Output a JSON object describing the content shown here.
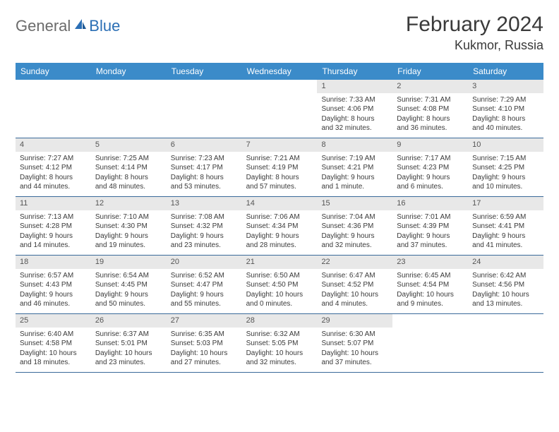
{
  "brand": {
    "general": "General",
    "blue": "Blue"
  },
  "title": "February 2024",
  "location": "Kukmor, Russia",
  "colors": {
    "header_bg": "#3b8bc9",
    "header_text": "#ffffff",
    "daynum_bg": "#e8e8e8",
    "rule": "#3a6a9a",
    "title_color": "#3a3a3a",
    "logo_general": "#6b6b6b",
    "logo_blue": "#2b6fb5"
  },
  "weekdays": [
    "Sunday",
    "Monday",
    "Tuesday",
    "Wednesday",
    "Thursday",
    "Friday",
    "Saturday"
  ],
  "weeks": [
    [
      {
        "empty": true
      },
      {
        "empty": true
      },
      {
        "empty": true
      },
      {
        "empty": true
      },
      {
        "n": "1",
        "sr": "Sunrise: 7:33 AM",
        "ss": "Sunset: 4:06 PM",
        "d1": "Daylight: 8 hours",
        "d2": "and 32 minutes."
      },
      {
        "n": "2",
        "sr": "Sunrise: 7:31 AM",
        "ss": "Sunset: 4:08 PM",
        "d1": "Daylight: 8 hours",
        "d2": "and 36 minutes."
      },
      {
        "n": "3",
        "sr": "Sunrise: 7:29 AM",
        "ss": "Sunset: 4:10 PM",
        "d1": "Daylight: 8 hours",
        "d2": "and 40 minutes."
      }
    ],
    [
      {
        "n": "4",
        "sr": "Sunrise: 7:27 AM",
        "ss": "Sunset: 4:12 PM",
        "d1": "Daylight: 8 hours",
        "d2": "and 44 minutes."
      },
      {
        "n": "5",
        "sr": "Sunrise: 7:25 AM",
        "ss": "Sunset: 4:14 PM",
        "d1": "Daylight: 8 hours",
        "d2": "and 48 minutes."
      },
      {
        "n": "6",
        "sr": "Sunrise: 7:23 AM",
        "ss": "Sunset: 4:17 PM",
        "d1": "Daylight: 8 hours",
        "d2": "and 53 minutes."
      },
      {
        "n": "7",
        "sr": "Sunrise: 7:21 AM",
        "ss": "Sunset: 4:19 PM",
        "d1": "Daylight: 8 hours",
        "d2": "and 57 minutes."
      },
      {
        "n": "8",
        "sr": "Sunrise: 7:19 AM",
        "ss": "Sunset: 4:21 PM",
        "d1": "Daylight: 9 hours",
        "d2": "and 1 minute."
      },
      {
        "n": "9",
        "sr": "Sunrise: 7:17 AM",
        "ss": "Sunset: 4:23 PM",
        "d1": "Daylight: 9 hours",
        "d2": "and 6 minutes."
      },
      {
        "n": "10",
        "sr": "Sunrise: 7:15 AM",
        "ss": "Sunset: 4:25 PM",
        "d1": "Daylight: 9 hours",
        "d2": "and 10 minutes."
      }
    ],
    [
      {
        "n": "11",
        "sr": "Sunrise: 7:13 AM",
        "ss": "Sunset: 4:28 PM",
        "d1": "Daylight: 9 hours",
        "d2": "and 14 minutes."
      },
      {
        "n": "12",
        "sr": "Sunrise: 7:10 AM",
        "ss": "Sunset: 4:30 PM",
        "d1": "Daylight: 9 hours",
        "d2": "and 19 minutes."
      },
      {
        "n": "13",
        "sr": "Sunrise: 7:08 AM",
        "ss": "Sunset: 4:32 PM",
        "d1": "Daylight: 9 hours",
        "d2": "and 23 minutes."
      },
      {
        "n": "14",
        "sr": "Sunrise: 7:06 AM",
        "ss": "Sunset: 4:34 PM",
        "d1": "Daylight: 9 hours",
        "d2": "and 28 minutes."
      },
      {
        "n": "15",
        "sr": "Sunrise: 7:04 AM",
        "ss": "Sunset: 4:36 PM",
        "d1": "Daylight: 9 hours",
        "d2": "and 32 minutes."
      },
      {
        "n": "16",
        "sr": "Sunrise: 7:01 AM",
        "ss": "Sunset: 4:39 PM",
        "d1": "Daylight: 9 hours",
        "d2": "and 37 minutes."
      },
      {
        "n": "17",
        "sr": "Sunrise: 6:59 AM",
        "ss": "Sunset: 4:41 PM",
        "d1": "Daylight: 9 hours",
        "d2": "and 41 minutes."
      }
    ],
    [
      {
        "n": "18",
        "sr": "Sunrise: 6:57 AM",
        "ss": "Sunset: 4:43 PM",
        "d1": "Daylight: 9 hours",
        "d2": "and 46 minutes."
      },
      {
        "n": "19",
        "sr": "Sunrise: 6:54 AM",
        "ss": "Sunset: 4:45 PM",
        "d1": "Daylight: 9 hours",
        "d2": "and 50 minutes."
      },
      {
        "n": "20",
        "sr": "Sunrise: 6:52 AM",
        "ss": "Sunset: 4:47 PM",
        "d1": "Daylight: 9 hours",
        "d2": "and 55 minutes."
      },
      {
        "n": "21",
        "sr": "Sunrise: 6:50 AM",
        "ss": "Sunset: 4:50 PM",
        "d1": "Daylight: 10 hours",
        "d2": "and 0 minutes."
      },
      {
        "n": "22",
        "sr": "Sunrise: 6:47 AM",
        "ss": "Sunset: 4:52 PM",
        "d1": "Daylight: 10 hours",
        "d2": "and 4 minutes."
      },
      {
        "n": "23",
        "sr": "Sunrise: 6:45 AM",
        "ss": "Sunset: 4:54 PM",
        "d1": "Daylight: 10 hours",
        "d2": "and 9 minutes."
      },
      {
        "n": "24",
        "sr": "Sunrise: 6:42 AM",
        "ss": "Sunset: 4:56 PM",
        "d1": "Daylight: 10 hours",
        "d2": "and 13 minutes."
      }
    ],
    [
      {
        "n": "25",
        "sr": "Sunrise: 6:40 AM",
        "ss": "Sunset: 4:58 PM",
        "d1": "Daylight: 10 hours",
        "d2": "and 18 minutes."
      },
      {
        "n": "26",
        "sr": "Sunrise: 6:37 AM",
        "ss": "Sunset: 5:01 PM",
        "d1": "Daylight: 10 hours",
        "d2": "and 23 minutes."
      },
      {
        "n": "27",
        "sr": "Sunrise: 6:35 AM",
        "ss": "Sunset: 5:03 PM",
        "d1": "Daylight: 10 hours",
        "d2": "and 27 minutes."
      },
      {
        "n": "28",
        "sr": "Sunrise: 6:32 AM",
        "ss": "Sunset: 5:05 PM",
        "d1": "Daylight: 10 hours",
        "d2": "and 32 minutes."
      },
      {
        "n": "29",
        "sr": "Sunrise: 6:30 AM",
        "ss": "Sunset: 5:07 PM",
        "d1": "Daylight: 10 hours",
        "d2": "and 37 minutes."
      },
      {
        "empty": true
      },
      {
        "empty": true
      }
    ]
  ]
}
